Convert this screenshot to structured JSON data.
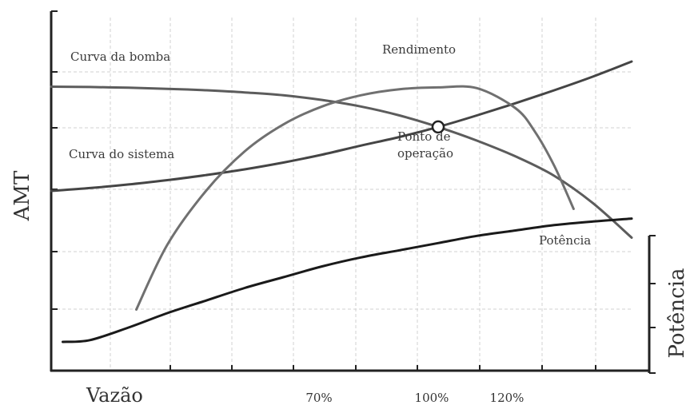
{
  "chart_data": {
    "type": "line",
    "title": "",
    "xlabel": "Vazão",
    "ylabel": "AMT",
    "y2label": "Potência",
    "x_ticks": [
      "70%",
      "100%",
      "120%"
    ],
    "xlim": [
      -140,
      160
    ],
    "grid": true,
    "series": [
      {
        "name": "Curva da bomba",
        "axis": "AMT",
        "x": [
          0,
          10,
          20,
          30,
          40,
          50,
          60,
          70,
          80,
          90,
          100,
          110,
          120,
          130,
          140,
          150
        ],
        "y": [
          79,
          78.9,
          78.7,
          78.4,
          78,
          77.4,
          76.6,
          75.3,
          73.5,
          71,
          67.8,
          64,
          59.6,
          54.2,
          46.6,
          37
        ]
      },
      {
        "name": "Curva do sistema",
        "axis": "AMT",
        "x": [
          0,
          10,
          20,
          30,
          40,
          50,
          60,
          70,
          80,
          90,
          100,
          110,
          120,
          130,
          140,
          150
        ],
        "y": [
          50,
          50.8,
          51.8,
          53,
          54.4,
          56,
          57.9,
          60.1,
          62.6,
          65,
          67.8,
          71,
          74.4,
          78,
          81.8,
          86
        ]
      },
      {
        "name": "Rendimento",
        "axis": "AMT",
        "x": [
          22,
          30,
          40,
          50,
          60,
          70,
          80,
          90,
          100,
          110,
          120,
          125,
          130,
          135
        ],
        "y": [
          17,
          35,
          50,
          61,
          68.5,
          73.5,
          76.6,
          78.3,
          78.8,
          78.6,
          73,
          66.5,
          57,
          45
        ]
      },
      {
        "name": "Potência",
        "axis": "Potência",
        "x": [
          3,
          10,
          20,
          30,
          40,
          50,
          60,
          70,
          80,
          90,
          100,
          110,
          120,
          130,
          140,
          150
        ],
        "y": [
          8,
          8.5,
          12,
          16,
          19.5,
          23,
          26,
          29,
          31.5,
          33.5,
          35.5,
          37.5,
          39,
          40.5,
          41.5,
          42.3
        ]
      }
    ],
    "point": {
      "label_line1": "Ponto de",
      "label_line2": "operação",
      "x": 100,
      "y": 67.8
    }
  }
}
